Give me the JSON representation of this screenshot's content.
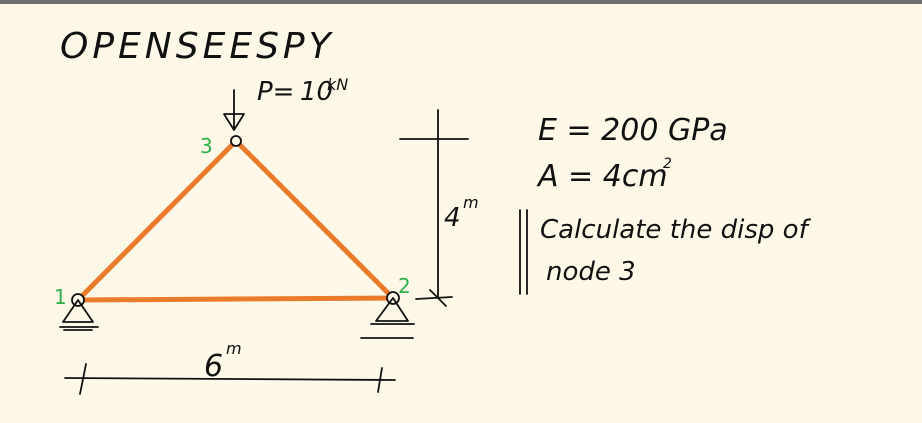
{
  "title": "OPENSEESPY",
  "load": {
    "prefix": "P=",
    "value": "10",
    "unit": "kN"
  },
  "material": {
    "E": "E = 200 GPa",
    "A_main": "A = 4cm",
    "A_sup": "2"
  },
  "task": {
    "line1": "Calculate the disp of",
    "line2": "node 3"
  },
  "dimensions": {
    "height_value": "4",
    "height_unit": "m",
    "span_value": "6",
    "span_unit": "m"
  },
  "nodes": [
    {
      "id": "1",
      "label": "1"
    },
    {
      "id": "2",
      "label": "2"
    },
    {
      "id": "3",
      "label": "3"
    }
  ],
  "colors": {
    "members": "#ea7a2c",
    "node_labels": "#2fb04a",
    "ink": "#111111",
    "background": "#fdf8e8"
  }
}
